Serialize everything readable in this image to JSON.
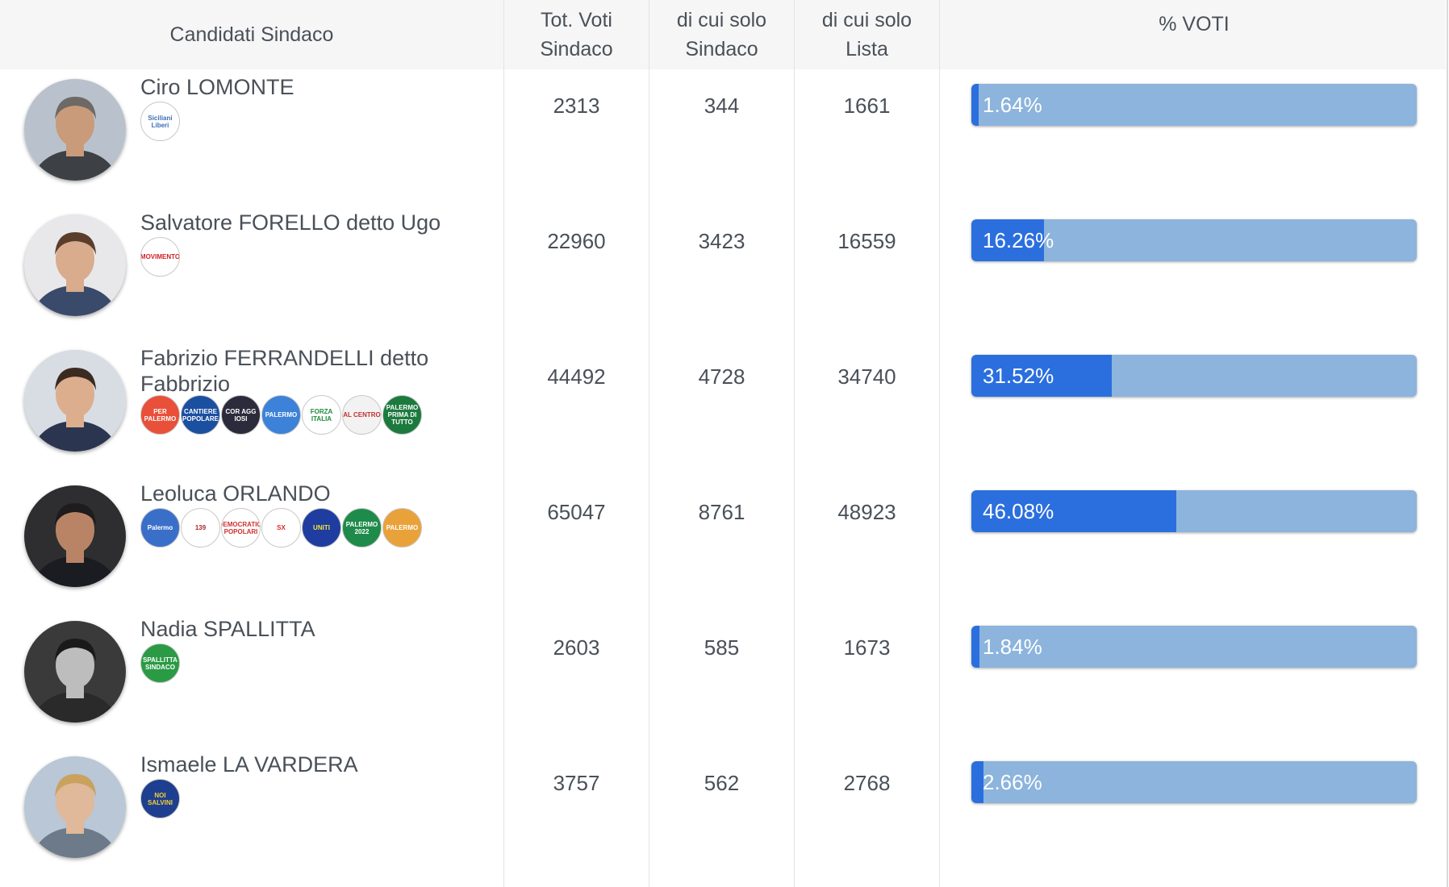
{
  "header": {
    "candidates": "Candidati Sindaco",
    "tot_voti": "Tot. Voti\nSindaco",
    "solo_sindaco": "di cui solo\nSindaco",
    "solo_lista": "di cui solo\nLista",
    "pct": "% VOTI"
  },
  "colors": {
    "bar_track": "#8cb4dc",
    "bar_fill": "#2b6fde",
    "header_bg": "#f6f6f6"
  },
  "candidates": [
    {
      "name": "Ciro LOMONTE",
      "tot": "2313",
      "solo_sindaco": "344",
      "solo_lista": "1661",
      "pct_label": "1.64%",
      "pct_value": 1.64,
      "logos": [
        {
          "icon": "siciliani-liberi-logo",
          "text": "Siciliani Liberi",
          "bg": "#ffffff",
          "fg": "#3a6fb5"
        }
      ]
    },
    {
      "name": "Salvatore FORELLO detto Ugo",
      "tot": "22960",
      "solo_sindaco": "3423",
      "solo_lista": "16559",
      "pct_label": "16.26%",
      "pct_value": 16.26,
      "logos": [
        {
          "icon": "movimento-5-stelle-logo",
          "text": "MOVIMENTO",
          "bg": "#ffffff",
          "fg": "#d11f26"
        }
      ]
    },
    {
      "name": "Fabrizio FERRANDELLI detto Fabbrizio",
      "tot": "44492",
      "solo_sindaco": "4728",
      "solo_lista": "34740",
      "pct_label": "31.52%",
      "pct_value": 31.52,
      "logos": [
        {
          "icon": "per-palermo-logo",
          "text": "PER PALERMO",
          "bg": "#e8503a",
          "fg": "#ffffff"
        },
        {
          "icon": "cantiere-popolare-logo",
          "text": "CANTIERE POPOLARE",
          "bg": "#1b4fa0",
          "fg": "#ffffff"
        },
        {
          "icon": "coraggiosi-logo",
          "text": "COR AGG IOSI",
          "bg": "#2b2b3b",
          "fg": "#ffffff"
        },
        {
          "icon": "udc-palermo-logo",
          "text": "PALERMO",
          "bg": "#3c82d8",
          "fg": "#ffffff"
        },
        {
          "icon": "forza-italia-logo",
          "text": "FORZA ITALIA",
          "bg": "#ffffff",
          "fg": "#1f8a3c"
        },
        {
          "icon": "al-centro-logo",
          "text": "AL CENTRO",
          "bg": "#f2f2f2",
          "fg": "#c0302f"
        },
        {
          "icon": "palermo-prima-di-tutto-logo",
          "text": "PALERMO PRIMA DI TUTTO",
          "bg": "#1d7a3e",
          "fg": "#ffffff"
        }
      ]
    },
    {
      "name": "Leoluca ORLANDO",
      "tot": "65047",
      "solo_sindaco": "8761",
      "solo_lista": "48923",
      "pct_label": "46.08%",
      "pct_value": 46.08,
      "logos": [
        {
          "icon": "palermo-civic-logo",
          "text": "Palermo",
          "bg": "#3a6fc9",
          "fg": "#ffffff"
        },
        {
          "icon": "movimento-139-logo",
          "text": "139",
          "bg": "#ffffff",
          "fg": "#b02828"
        },
        {
          "icon": "democratici-popolari-logo",
          "text": "DEMOCRATICI POPOLARI",
          "bg": "#ffffff",
          "fg": "#d02f2f"
        },
        {
          "icon": "sinistra-comune-logo",
          "text": "SX",
          "bg": "#ffffff",
          "fg": "#e02b24"
        },
        {
          "icon": "uniti-logo",
          "text": "UNITI",
          "bg": "#1f3da0",
          "fg": "#f5e23a"
        },
        {
          "icon": "palermo-2022-logo",
          "text": "PALERMO 2022",
          "bg": "#1f8b4a",
          "fg": "#ffffff"
        },
        {
          "icon": "avanti-insieme-logo",
          "text": "PALERMO",
          "bg": "#e9a23a",
          "fg": "#ffffff"
        }
      ]
    },
    {
      "name": "Nadia SPALLITTA",
      "tot": "2603",
      "solo_sindaco": "585",
      "solo_lista": "1673",
      "pct_label": "1.84%",
      "pct_value": 1.84,
      "logos": [
        {
          "icon": "spallitta-sindaco-logo",
          "text": "SPALLITTA SINDACO",
          "bg": "#2a9a45",
          "fg": "#ffffff"
        }
      ]
    },
    {
      "name": "Ismaele LA VARDERA",
      "tot": "3757",
      "solo_sindaco": "562",
      "solo_lista": "2768",
      "pct_label": "2.66%",
      "pct_value": 2.66,
      "logos": [
        {
          "icon": "noi-salvini-logo",
          "text": "NOI SALVINI",
          "bg": "#1e3f8f",
          "fg": "#f0d23a"
        }
      ]
    }
  ]
}
